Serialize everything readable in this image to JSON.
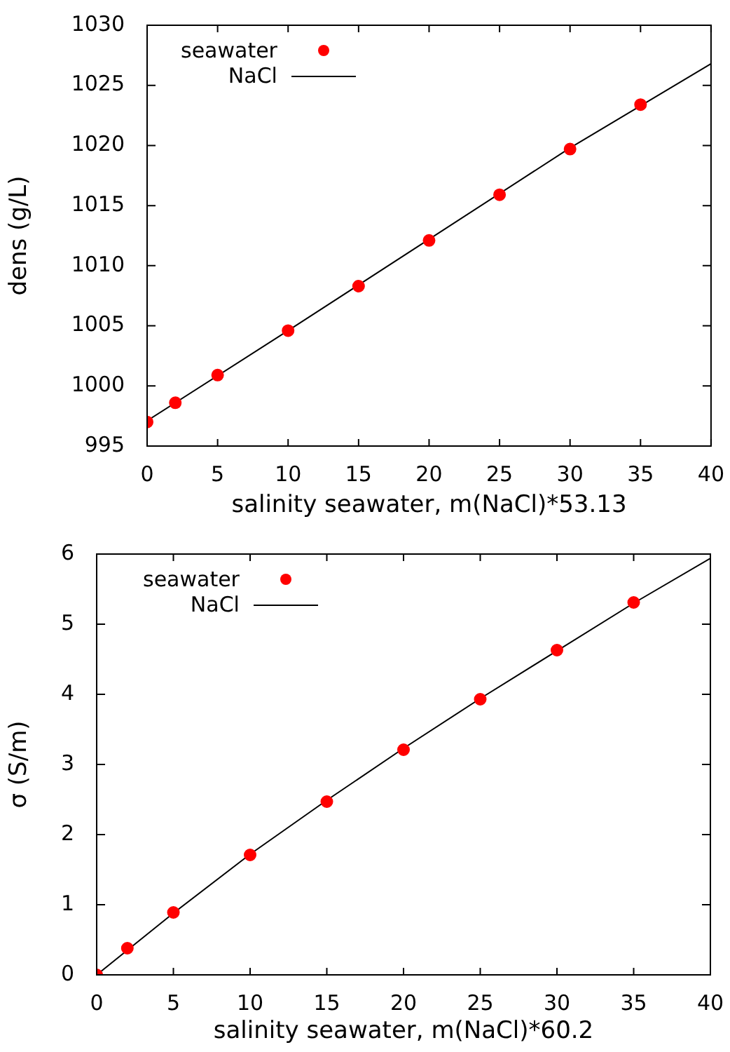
{
  "chart_data": [
    {
      "type": "scatter",
      "xlabel": "salinity seawater, m(NaCl)*53.13",
      "ylabel": "dens (g/L)",
      "xlim": [
        0,
        40
      ],
      "xticks": [
        0,
        5,
        10,
        15,
        20,
        25,
        30,
        35,
        40
      ],
      "ylim": [
        995,
        1030
      ],
      "yticks": [
        995,
        1000,
        1005,
        1010,
        1015,
        1020,
        1025,
        1030
      ],
      "grid": false,
      "legend": "top left",
      "series": [
        {
          "name": "seawater",
          "type": "scatter",
          "marker": "circle",
          "color": "#ff0000",
          "x": [
            0,
            2,
            5,
            10,
            15,
            20,
            25,
            30,
            35
          ],
          "values": [
            997.0,
            998.6,
            1000.9,
            1004.6,
            1008.3,
            1012.1,
            1015.9,
            1019.7,
            1023.4
          ]
        },
        {
          "name": "NaCl",
          "type": "line",
          "marker": "none",
          "line_style": "solid",
          "color": "#000000",
          "x": [
            0,
            10,
            20,
            30,
            40
          ],
          "values": [
            997.1,
            1004.6,
            1012.2,
            1019.8,
            1026.8
          ]
        }
      ]
    },
    {
      "type": "scatter",
      "xlabel": "salinity seawater, m(NaCl)*60.2",
      "ylabel": "σ (S/m)",
      "xlim": [
        0,
        40
      ],
      "xticks": [
        0,
        5,
        10,
        15,
        20,
        25,
        30,
        35,
        40
      ],
      "ylim": [
        0,
        6
      ],
      "yticks": [
        0,
        1,
        2,
        3,
        4,
        5,
        6
      ],
      "grid": false,
      "legend": "top left",
      "series": [
        {
          "name": "seawater",
          "type": "scatter",
          "marker": "circle",
          "color": "#ff0000",
          "x": [
            0,
            2,
            5,
            10,
            15,
            20,
            25,
            30,
            35
          ],
          "values": [
            0,
            0.38,
            0.89,
            1.71,
            2.47,
            3.21,
            3.93,
            4.63,
            5.31
          ]
        },
        {
          "name": "NaCl",
          "type": "line",
          "marker": "none",
          "line_style": "solid",
          "color": "#000000",
          "x": [
            0,
            5,
            10,
            15,
            20,
            25,
            35,
            40
          ],
          "values": [
            0,
            0.88,
            1.72,
            2.49,
            3.23,
            3.94,
            5.3,
            5.94
          ]
        }
      ]
    }
  ]
}
